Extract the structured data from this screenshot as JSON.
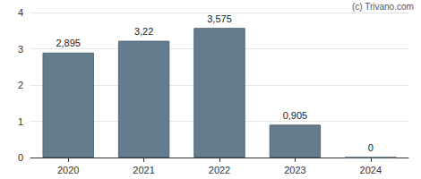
{
  "chart_data": {
    "type": "bar",
    "categories": [
      "2020",
      "2021",
      "2022",
      "2023",
      "2024"
    ],
    "values": [
      2.895,
      3.22,
      3.575,
      0.905,
      0
    ],
    "value_labels": [
      "2,895",
      "3,22",
      "3,575",
      "0,905",
      "0"
    ],
    "data_labels": true,
    "color": "#647d8e",
    "ylim": [
      0,
      4
    ],
    "yticks": [
      0,
      1,
      2,
      3,
      4
    ],
    "grid": true,
    "annotations": [
      "(c) Trivano.com"
    ]
  }
}
